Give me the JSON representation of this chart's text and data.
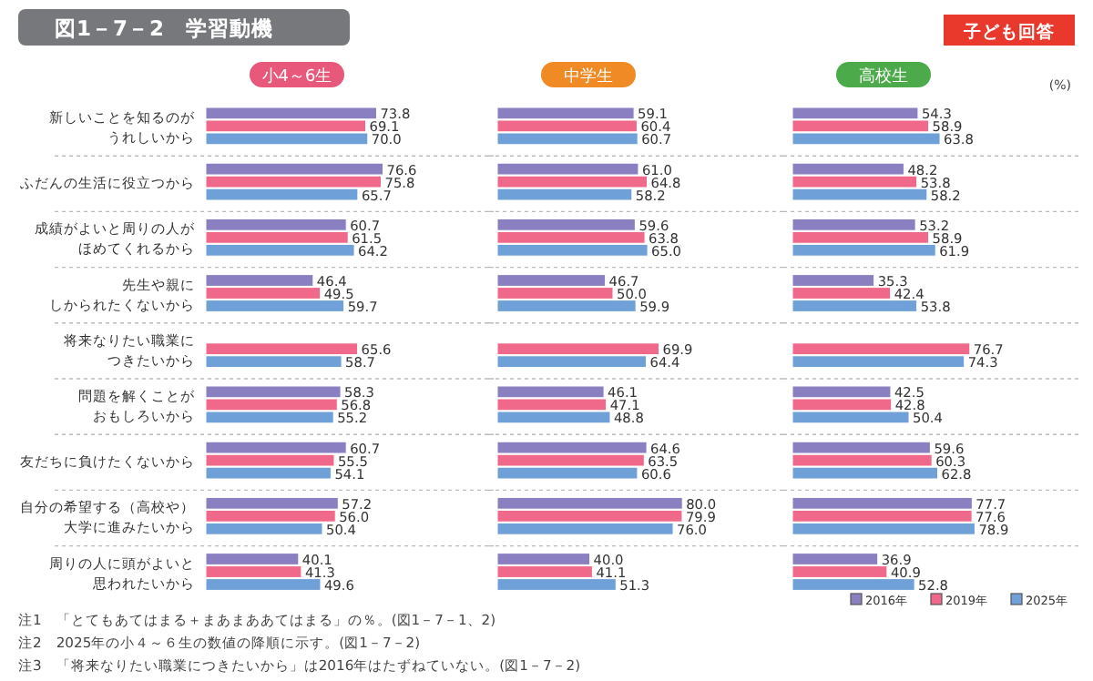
{
  "chart_data": [
    {
      "type": "bar",
      "orientation": "horizontal",
      "title": "小4～6生",
      "categories": [
        "新しいことを知るのがうれしいから",
        "ふだんの生活に役立つから",
        "成績がよいと周りの人がほめてくれるから",
        "先生や親にしかられたくないから",
        "将来なりたい職業につきたいから",
        "問題を解くことがおもしろいから",
        "友だちに負けたくないから",
        "自分の希望する（高校や）大学に進みたいから",
        "周りの人に頭がよいと思われたいから"
      ],
      "tick_labels": "y",
      "legend": false,
      "series": [
        {
          "color": "#8a7fc0",
          "values": [
            73.8,
            76.6,
            60.7,
            46.4,
            null,
            58.3,
            60.7,
            57.2,
            40.1
          ],
          "value_labels": [
            "73.8",
            "76.6",
            "60.7",
            "46.4",
            null,
            "58.3",
            "60.7",
            "57.2",
            "40.1"
          ]
        },
        {
          "color": "#f0688a",
          "values": [
            69.1,
            75.8,
            61.5,
            49.5,
            65.6,
            56.8,
            55.5,
            56.0,
            41.3
          ],
          "value_labels": [
            "69.1",
            "75.8",
            "61.5",
            "49.5",
            "65.6",
            "56.8",
            "55.5",
            "56.0",
            "41.3"
          ]
        },
        {
          "color": "#6fa0d8",
          "values": [
            70.0,
            65.7,
            64.2,
            59.7,
            58.7,
            55.2,
            54.1,
            50.4,
            49.6
          ],
          "value_labels": [
            "70.0",
            "65.7",
            "64.2",
            "59.7",
            "58.7",
            "55.2",
            "54.1",
            "50.4",
            "49.6"
          ]
        }
      ],
      "annotations": [
        "図1－7－2　学習動機",
        "子ども回答",
        "注1　「とてもあてはまる＋まあまああてはまる」の％。(図1－7－1、2)",
        "注2　2025年の小４～６生の数値の降順に示す。(図1－7－2)",
        "注3　「将来なりたい職業につきたいから」は2016年はたずねていない。(図1－7－2)"
      ]
    },
    {
      "type": "bar",
      "orientation": "horizontal",
      "title": "中学生",
      "categories": [
        null,
        null,
        null,
        null,
        null,
        null,
        null,
        null,
        null
      ],
      "tick_labels": false,
      "legend": false,
      "series": [
        {
          "color": "#8a7fc0",
          "values": [
            59.1,
            61.0,
            59.6,
            46.7,
            null,
            46.1,
            64.6,
            80.0,
            40.0
          ],
          "value_labels": [
            "59.1",
            "61.0",
            "59.6",
            "46.7",
            null,
            "46.1",
            "64.6",
            "80.0",
            "40.0"
          ]
        },
        {
          "color": "#f0688a",
          "values": [
            60.4,
            64.8,
            63.8,
            50.0,
            69.9,
            47.1,
            63.5,
            79.9,
            41.1
          ],
          "value_labels": [
            "60.4",
            "64.8",
            "63.8",
            "50.0",
            "69.9",
            "47.1",
            "63.5",
            "79.9",
            "41.1"
          ]
        },
        {
          "color": "#6fa0d8",
          "values": [
            60.7,
            58.2,
            65.0,
            59.9,
            64.4,
            48.8,
            60.6,
            76.0,
            51.3
          ],
          "value_labels": [
            "60.7",
            "58.2",
            "65.0",
            "59.9",
            "64.4",
            "48.8",
            "60.6",
            "76.0",
            "51.3"
          ]
        }
      ]
    },
    {
      "type": "bar",
      "orientation": "horizontal",
      "title": "高校生",
      "categories": [
        null,
        null,
        null,
        null,
        null,
        null,
        null,
        null,
        null
      ],
      "tick_labels": false,
      "legend": "bottom right",
      "series": [
        {
          "name": "2016年",
          "color": "#8a7fc0",
          "values": [
            54.3,
            48.2,
            53.2,
            35.3,
            null,
            42.5,
            59.6,
            77.7,
            36.9
          ],
          "value_labels": [
            "54.3",
            "48.2",
            "53.2",
            "35.3",
            null,
            "42.5",
            "59.6",
            "77.7",
            "36.9"
          ]
        },
        {
          "name": "2019年",
          "color": "#f0688a",
          "values": [
            58.9,
            53.8,
            58.9,
            42.4,
            76.7,
            42.8,
            60.3,
            77.6,
            40.9
          ],
          "value_labels": [
            "58.9",
            "53.8",
            "58.9",
            "42.4",
            "76.7",
            "42.8",
            "60.3",
            "77.6",
            "40.9"
          ]
        },
        {
          "name": "2025年",
          "color": "#6fa0d8",
          "values": [
            63.8,
            58.2,
            61.9,
            53.8,
            74.3,
            50.4,
            62.8,
            78.9,
            52.8
          ],
          "value_labels": [
            "63.8",
            "58.2",
            "61.9",
            "53.8",
            "74.3",
            "50.4",
            "62.8",
            "78.9",
            "52.8"
          ]
        }
      ],
      "annotations": [
        "(%)"
      ]
    }
  ]
}
